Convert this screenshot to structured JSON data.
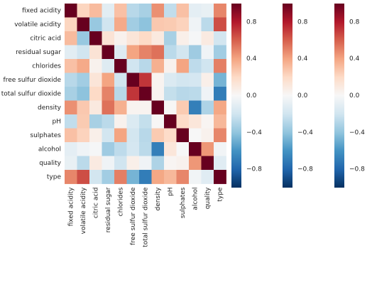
{
  "chart_data": {
    "type": "heatmap",
    "title": "",
    "labels": [
      "fixed acidity",
      "volatile acidity",
      "citric acid",
      "residual sugar",
      "chlorides",
      "free sulfur dioxide",
      "total sulfur dioxide",
      "density",
      "pH",
      "sulphates",
      "alcohol",
      "quality",
      "type"
    ],
    "matrix": [
      [
        1.0,
        0.22,
        0.32,
        -0.11,
        0.3,
        -0.28,
        -0.33,
        0.46,
        -0.25,
        0.3,
        -0.1,
        -0.08,
        0.49
      ],
      [
        0.22,
        1.0,
        -0.38,
        -0.2,
        0.38,
        -0.35,
        -0.41,
        0.27,
        0.26,
        0.23,
        -0.04,
        -0.27,
        0.65
      ],
      [
        0.32,
        -0.38,
        1.0,
        0.14,
        0.04,
        0.13,
        0.2,
        0.1,
        -0.33,
        0.06,
        -0.01,
        0.09,
        -0.19
      ],
      [
        -0.11,
        -0.2,
        0.14,
        1.0,
        -0.13,
        0.4,
        0.5,
        0.55,
        -0.27,
        -0.19,
        -0.36,
        -0.04,
        -0.35
      ],
      [
        0.3,
        0.38,
        0.04,
        -0.13,
        1.0,
        -0.2,
        -0.28,
        0.36,
        0.04,
        0.4,
        -0.26,
        -0.2,
        0.51
      ],
      [
        -0.28,
        -0.35,
        0.13,
        0.4,
        -0.2,
        1.0,
        0.72,
        0.03,
        -0.15,
        -0.19,
        -0.18,
        0.06,
        -0.47
      ],
      [
        -0.33,
        -0.41,
        0.2,
        0.5,
        -0.28,
        0.72,
        1.0,
        0.03,
        -0.24,
        -0.28,
        -0.27,
        -0.04,
        -0.7
      ],
      [
        0.46,
        0.27,
        0.1,
        0.55,
        0.36,
        0.03,
        0.03,
        1.0,
        0.01,
        0.26,
        -0.69,
        -0.31,
        0.39
      ],
      [
        -0.25,
        0.26,
        -0.33,
        -0.27,
        0.04,
        -0.15,
        -0.24,
        0.01,
        1.0,
        0.19,
        0.12,
        0.02,
        0.33
      ],
      [
        0.3,
        0.23,
        0.06,
        -0.19,
        0.4,
        -0.19,
        -0.28,
        0.26,
        0.19,
        1.0,
        -0.0,
        0.04,
        0.49
      ],
      [
        -0.1,
        -0.04,
        -0.01,
        -0.36,
        -0.26,
        -0.18,
        -0.27,
        -0.69,
        0.12,
        -0.0,
        1.0,
        0.44,
        -0.03
      ],
      [
        -0.08,
        -0.27,
        0.09,
        -0.04,
        -0.2,
        0.06,
        -0.04,
        -0.31,
        0.02,
        0.04,
        0.44,
        1.0,
        -0.12
      ],
      [
        0.49,
        0.65,
        -0.19,
        -0.35,
        0.51,
        -0.47,
        -0.7,
        0.39,
        0.33,
        0.49,
        -0.03,
        -0.12,
        1.0
      ]
    ],
    "vmin": -1.0,
    "vmax": 1.0,
    "colormap": "RdBu_r",
    "colorbar_ticks": [
      "0.8",
      "0.4",
      "0.0",
      "−0.4",
      "−0.8"
    ],
    "colorbar_tick_values": [
      0.8,
      0.4,
      0.0,
      -0.4,
      -0.8
    ],
    "colorbar_count": 3,
    "grid": false
  }
}
